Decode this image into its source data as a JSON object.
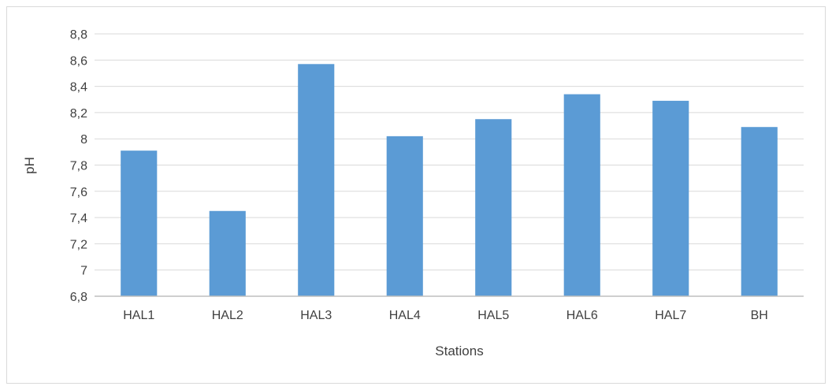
{
  "chart_data": {
    "type": "bar",
    "title": "",
    "xlabel": "Stations",
    "ylabel": "pH",
    "categories": [
      "HAL1",
      "HAL2",
      "HAL3",
      "HAL4",
      "HAL5",
      "HAL6",
      "HAL7",
      "BH"
    ],
    "values": [
      7.91,
      7.45,
      8.57,
      8.02,
      8.15,
      8.34,
      8.29,
      8.09
    ],
    "ylim": [
      6.8,
      8.8
    ],
    "yticks": [
      6.8,
      7.0,
      7.2,
      7.4,
      7.6,
      7.8,
      8.0,
      8.2,
      8.4,
      8.6,
      8.8
    ],
    "ytick_labels": [
      "6,8",
      "7",
      "7,2",
      "7,4",
      "7,6",
      "7,8",
      "8",
      "8,2",
      "8,4",
      "8,6",
      "8,8"
    ],
    "grid": true,
    "legend": "none",
    "colors": {
      "bar": "#5b9bd5",
      "grid": "#d9d9d9",
      "axis": "#bfbfbf",
      "text": "#404040"
    }
  }
}
